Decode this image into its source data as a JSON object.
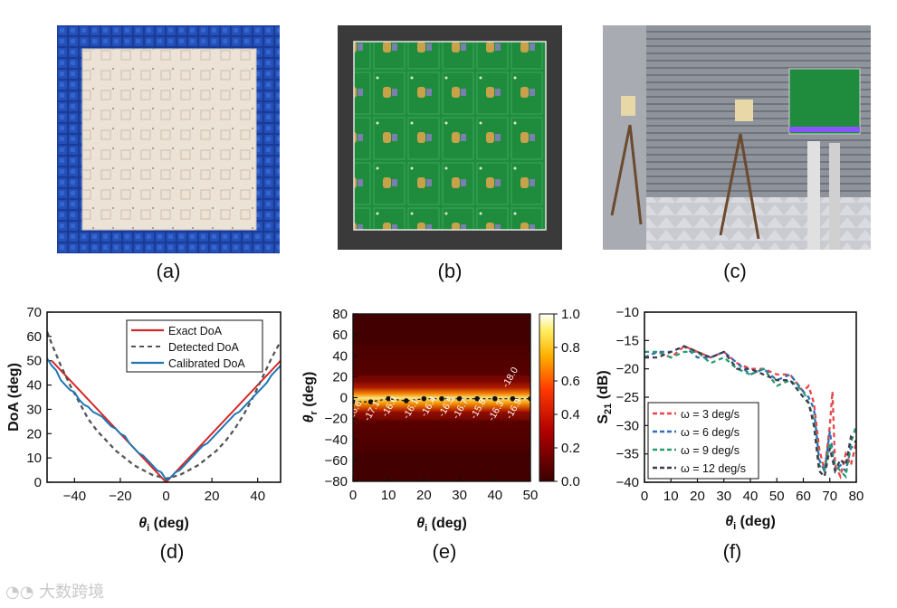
{
  "panel_labels": {
    "a": "(a)",
    "b": "(b)",
    "c": "(c)",
    "d": "(d)",
    "e": "(e)",
    "f": "(f)"
  },
  "photos": {
    "a": {
      "subject": "metasurface prototype surrounded by blue absorber blocks",
      "colors": {
        "frame": "#1f44a8",
        "surface": "#e9ddd0"
      }
    },
    "b": {
      "subject": "back side green PCB with varactors",
      "colors": {
        "pcb": "#1e8a3a",
        "background": "#3c3c3c"
      }
    },
    "c": {
      "subject": "anechoic chamber measurement setup",
      "colors": {
        "wall": "#8f939c",
        "floor": "#d7d7d7"
      }
    }
  },
  "watermark": "大数跨境",
  "chart_data": [
    {
      "id": "d",
      "type": "line",
      "xlabel": "θi (deg)",
      "ylabel": "DoA (deg)",
      "xlim": [
        -52,
        50
      ],
      "ylim": [
        0,
        70
      ],
      "xticks": [
        -40,
        -20,
        0,
        20,
        40
      ],
      "yticks": [
        0,
        10,
        20,
        30,
        40,
        50,
        60,
        70
      ],
      "legend_position": "top-right",
      "series": [
        {
          "name": "Exact DoA",
          "color": "#d62728",
          "style": "solid",
          "x": [
            -50,
            0,
            50
          ],
          "y": [
            50,
            0,
            50
          ]
        },
        {
          "name": "Detected DoA",
          "color": "#555555",
          "style": "dashed",
          "x": [
            -52,
            -50,
            -46,
            -42,
            -38,
            -34,
            -30,
            -26,
            -22,
            -18,
            -14,
            -10,
            -6,
            -2,
            0,
            2,
            6,
            10,
            14,
            18,
            22,
            26,
            30,
            34,
            38,
            42,
            46,
            50
          ],
          "y": [
            62,
            57,
            48,
            40,
            33,
            26,
            21,
            17,
            13,
            10,
            7,
            5,
            3,
            2,
            1.5,
            2,
            3,
            5,
            7,
            10,
            13,
            17,
            22,
            28,
            35,
            43,
            51,
            58
          ]
        },
        {
          "name": "Calibrated DoA",
          "color": "#1f77b4",
          "style": "solid",
          "x": [
            -52,
            -50,
            -48,
            -46,
            -44,
            -42,
            -40,
            -38,
            -36,
            -34,
            -32,
            -30,
            -28,
            -26,
            -24,
            -22,
            -20,
            -18,
            -16,
            -14,
            -12,
            -10,
            -8,
            -6,
            -4,
            -2,
            0,
            2,
            4,
            6,
            8,
            10,
            12,
            14,
            16,
            18,
            20,
            22,
            24,
            26,
            28,
            30,
            32,
            34,
            36,
            38,
            40,
            42,
            44,
            46,
            48,
            50
          ],
          "y": [
            51,
            48,
            46,
            42,
            40,
            38,
            37,
            34,
            32,
            31,
            29,
            28,
            27,
            25,
            23,
            22,
            20,
            19,
            16,
            14,
            12,
            11,
            9,
            7,
            5,
            4,
            1,
            2,
            4,
            5,
            7,
            9,
            11,
            13,
            15,
            16,
            18,
            20,
            22,
            24,
            26,
            28,
            29,
            31,
            33,
            35,
            37,
            39,
            41,
            44,
            46,
            48
          ]
        }
      ]
    },
    {
      "id": "e",
      "type": "heatmap",
      "xlabel": "θi (deg)",
      "ylabel": "θr (deg)",
      "xlim": [
        0,
        50
      ],
      "ylim": [
        -80,
        80
      ],
      "xticks": [
        0,
        10,
        20,
        30,
        40,
        50
      ],
      "yticks": [
        -80,
        -60,
        -40,
        -20,
        0,
        20,
        40,
        60,
        80
      ],
      "colorbar": {
        "min": 0.0,
        "max": 1.0,
        "ticks": [
          "0.0",
          "0.2",
          "0.4",
          "0.6",
          "0.8",
          "1.0"
        ],
        "colormap": "hot"
      },
      "peak_points": {
        "x": [
          0,
          5,
          10,
          15,
          20,
          25,
          30,
          35,
          40,
          45,
          50
        ],
        "y": [
          -4,
          -4,
          -1,
          -3,
          -1,
          -1,
          -1,
          -1,
          -1,
          -1,
          -1
        ]
      },
      "annotations": [
        {
          "text": "-16.6",
          "x": 1,
          "y": -14
        },
        {
          "text": "-17.1",
          "x": 6,
          "y": -14
        },
        {
          "text": "-16.0",
          "x": 11,
          "y": -10
        },
        {
          "text": "-16.1",
          "x": 17,
          "y": -12
        },
        {
          "text": "-16.4",
          "x": 22,
          "y": -10
        },
        {
          "text": "-16.5",
          "x": 27,
          "y": -10
        },
        {
          "text": "-16.7",
          "x": 31,
          "y": -12
        },
        {
          "text": "-15.8",
          "x": 36,
          "y": -12
        },
        {
          "text": "-16.3",
          "x": 41,
          "y": -14
        },
        {
          "text": "-16.9",
          "x": 46,
          "y": -12
        },
        {
          "text": "-18.0",
          "x": 45,
          "y": 18
        }
      ]
    },
    {
      "id": "f",
      "type": "line",
      "xlabel": "θi (deg)",
      "ylabel": "S21 (dB)",
      "xlim": [
        0,
        80
      ],
      "ylim": [
        -40,
        -10
      ],
      "xticks": [
        0,
        10,
        20,
        30,
        40,
        50,
        60,
        70,
        80
      ],
      "yticks": [
        -40,
        -35,
        -30,
        -25,
        -20,
        -15,
        -10
      ],
      "legend_position": "bottom-left",
      "series": [
        {
          "name": "ω = 3 deg/s",
          "color": "#e8474a",
          "style": "dashed",
          "x": [
            0,
            5,
            10,
            15,
            20,
            25,
            30,
            35,
            40,
            45,
            50,
            55,
            60,
            62,
            64,
            66,
            68,
            70,
            71,
            72,
            74,
            76,
            78,
            80
          ],
          "y": [
            -18,
            -17,
            -18,
            -16,
            -17,
            -18,
            -17,
            -19,
            -20,
            -20,
            -21,
            -21,
            -24,
            -23,
            -26,
            -34,
            -38,
            -30,
            -24,
            -37,
            -39,
            -35,
            -37,
            -33
          ]
        },
        {
          "name": "ω = 6 deg/s",
          "color": "#2f6fb5",
          "style": "dashed",
          "x": [
            0,
            5,
            10,
            15,
            20,
            25,
            30,
            35,
            40,
            45,
            50,
            55,
            60,
            62,
            64,
            66,
            68,
            70,
            72,
            74,
            76,
            78,
            80
          ],
          "y": [
            -18,
            -17,
            -17,
            -16,
            -18,
            -18,
            -17,
            -19,
            -21,
            -20,
            -22,
            -21,
            -24,
            -25,
            -27,
            -36,
            -38,
            -31,
            -38,
            -37,
            -38,
            -34,
            -33
          ]
        },
        {
          "name": "ω = 9 deg/s",
          "color": "#2a9d6e",
          "style": "dashed",
          "x": [
            0,
            5,
            10,
            15,
            20,
            25,
            30,
            35,
            40,
            45,
            50,
            55,
            60,
            62,
            64,
            66,
            68,
            70,
            72,
            74,
            76,
            78,
            80
          ],
          "y": [
            -17,
            -17,
            -18,
            -17,
            -17,
            -19,
            -18,
            -20,
            -21,
            -20,
            -23,
            -22,
            -24,
            -26,
            -29,
            -37,
            -38,
            -33,
            -37,
            -38,
            -39,
            -33,
            -30
          ]
        },
        {
          "name": "ω = 12 deg/s",
          "color": "#3d3d4d",
          "style": "dashed",
          "x": [
            0,
            5,
            10,
            15,
            20,
            25,
            30,
            35,
            40,
            45,
            50,
            55,
            60,
            62,
            64,
            66,
            68,
            70,
            72,
            74,
            76,
            78,
            80
          ],
          "y": [
            -18,
            -18,
            -17,
            -16,
            -17,
            -18,
            -17,
            -20,
            -20,
            -21,
            -22,
            -22,
            -25,
            -26,
            -30,
            -38,
            -39,
            -34,
            -38,
            -36,
            -37,
            -32,
            -33
          ]
        }
      ]
    }
  ]
}
